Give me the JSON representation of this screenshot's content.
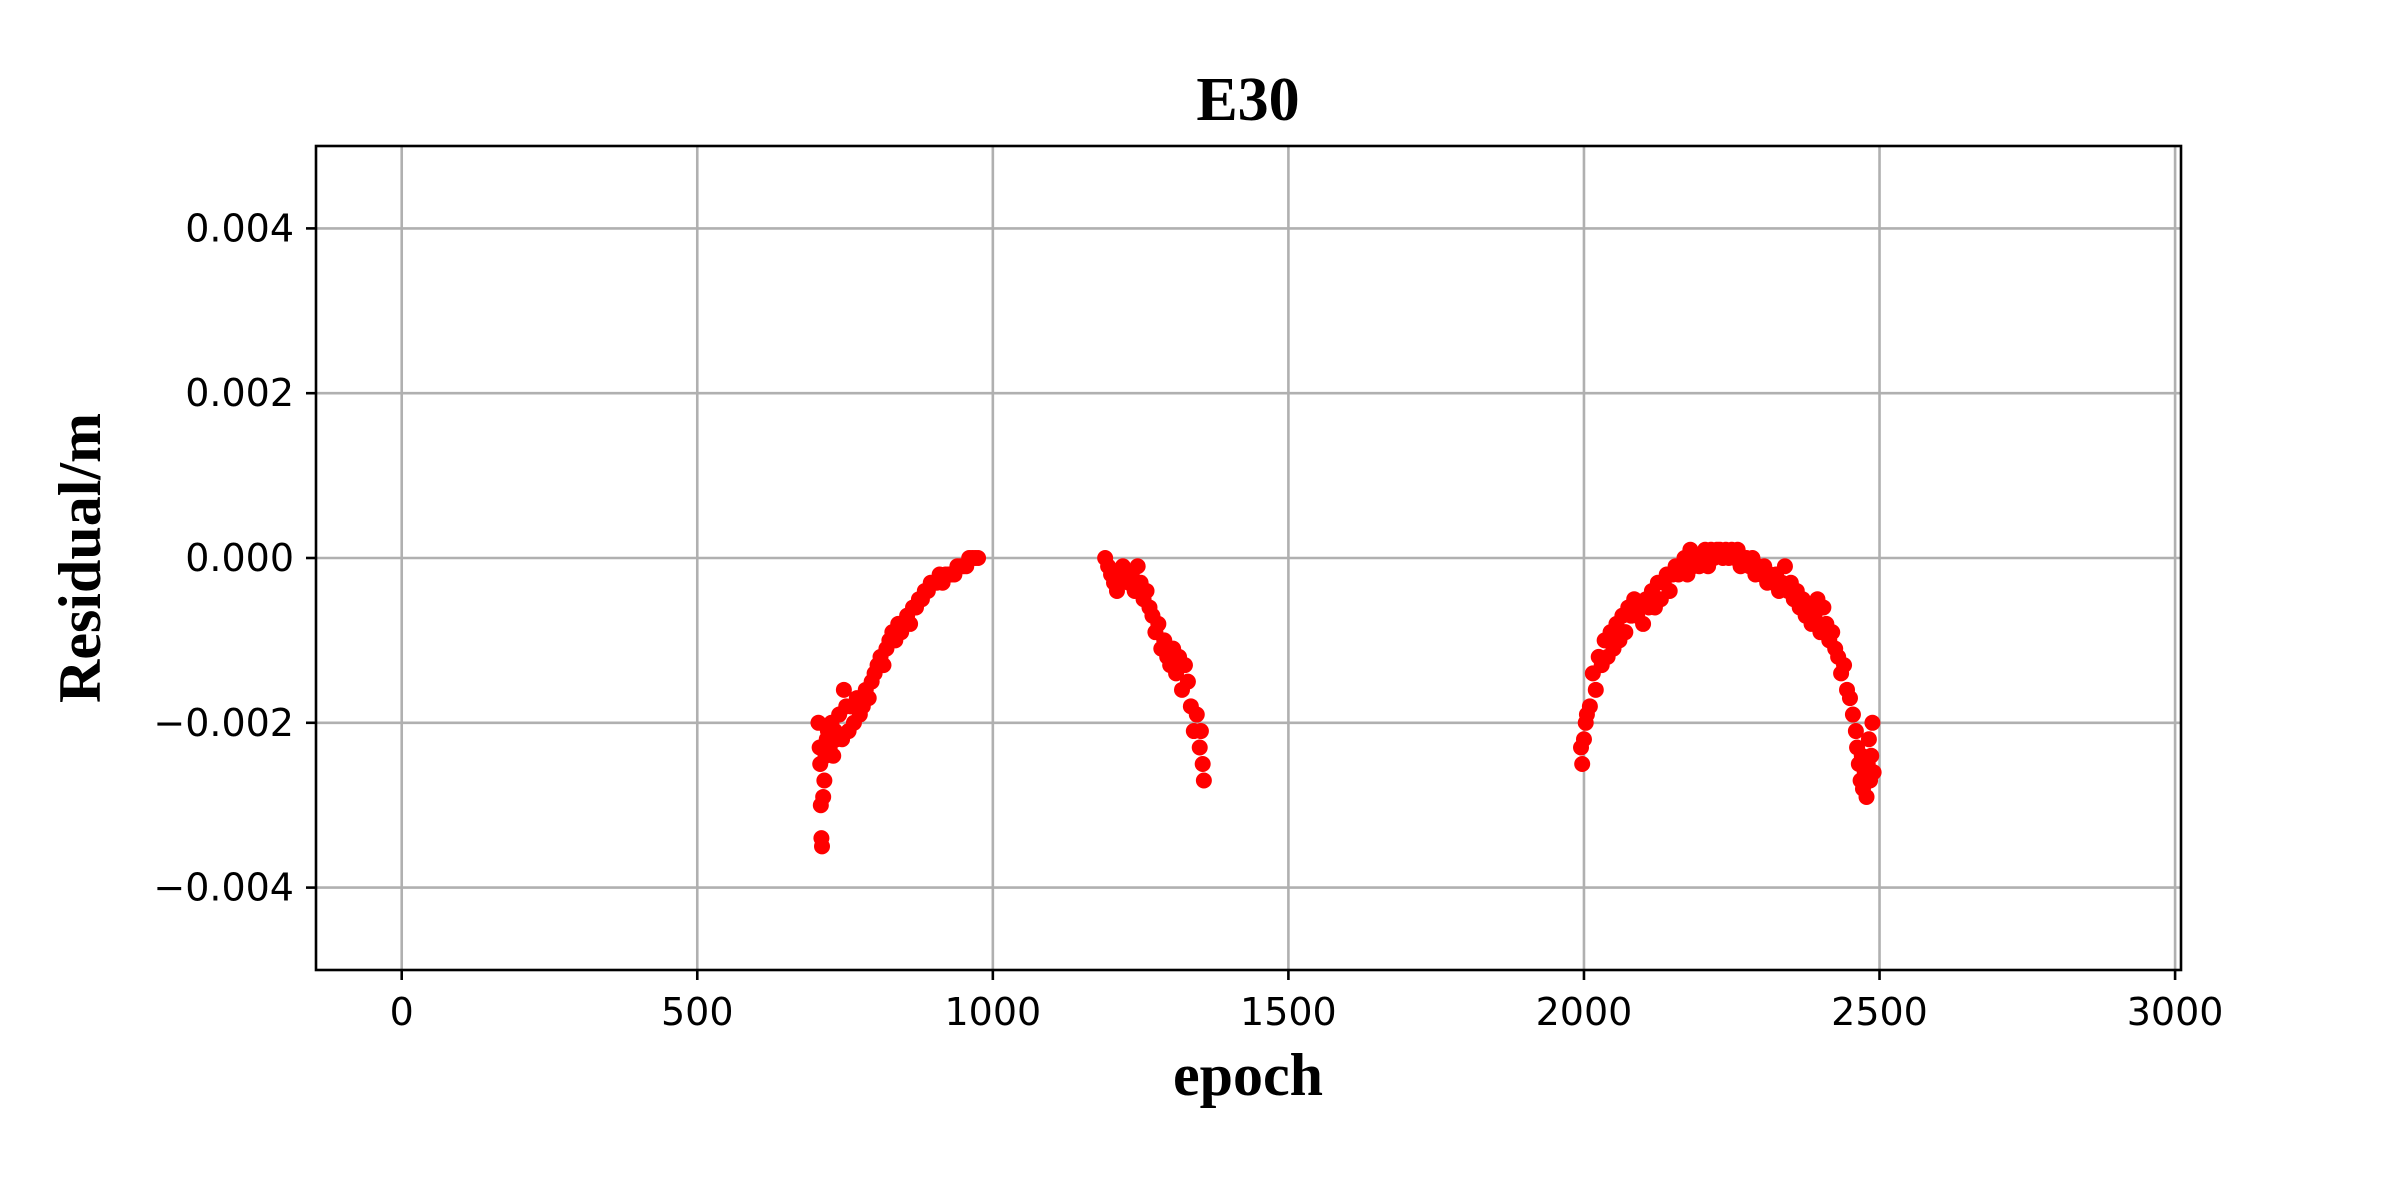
{
  "chart_data": {
    "type": "scatter",
    "title": "E30",
    "xlabel": "epoch",
    "ylabel": "Residual/m",
    "xlim": [
      -145,
      3010
    ],
    "ylim": [
      -0.005,
      0.005
    ],
    "xticks": [
      0,
      500,
      1000,
      1500,
      2000,
      2500,
      3000
    ],
    "xtick_labels": [
      "0",
      "500",
      "1000",
      "1500",
      "2000",
      "2500",
      "3000"
    ],
    "yticks": [
      0.004,
      0.002,
      0.0,
      -0.002,
      -0.004
    ],
    "ytick_labels": [
      "0.004",
      "0.002",
      "0.000",
      "−0.002",
      "−0.004"
    ],
    "grid": true,
    "marker_color": "#ff0000",
    "series": [
      {
        "points": [
          [
            705,
            -0.002
          ],
          [
            707,
            -0.0023
          ],
          [
            708,
            -0.0025
          ],
          [
            709,
            -0.003
          ],
          [
            710,
            -0.0034
          ],
          [
            711,
            -0.0035
          ],
          [
            713,
            -0.0029
          ],
          [
            715,
            -0.0027
          ],
          [
            717,
            -0.0024
          ],
          [
            719,
            -0.0022
          ],
          [
            721,
            -0.0021
          ],
          [
            724,
            -0.0023
          ],
          [
            727,
            -0.002
          ],
          [
            730,
            -0.0024
          ],
          [
            733,
            -0.0021
          ],
          [
            736,
            -0.0022
          ],
          [
            740,
            -0.0019
          ],
          [
            745,
            -0.0022
          ],
          [
            748,
            -0.0016
          ],
          [
            752,
            -0.0018
          ],
          [
            756,
            -0.0021
          ],
          [
            760,
            -0.0018
          ],
          [
            765,
            -0.002
          ],
          [
            770,
            -0.0017
          ],
          [
            775,
            -0.0019
          ],
          [
            780,
            -0.0018
          ],
          [
            785,
            -0.0016
          ],
          [
            790,
            -0.0017
          ],
          [
            795,
            -0.0015
          ],
          [
            800,
            -0.0014
          ],
          [
            805,
            -0.0013
          ],
          [
            810,
            -0.0012
          ],
          [
            815,
            -0.0013
          ],
          [
            820,
            -0.0011
          ],
          [
            825,
            -0.001
          ],
          [
            830,
            -0.0009
          ],
          [
            835,
            -0.001
          ],
          [
            840,
            -0.0008
          ],
          [
            845,
            -0.0009
          ],
          [
            850,
            -0.0008
          ],
          [
            855,
            -0.0007
          ],
          [
            860,
            -0.0008
          ],
          [
            865,
            -0.0006
          ],
          [
            870,
            -0.0006
          ],
          [
            875,
            -0.0005
          ],
          [
            880,
            -0.0005
          ],
          [
            885,
            -0.0004
          ],
          [
            890,
            -0.0004
          ],
          [
            895,
            -0.0003
          ],
          [
            900,
            -0.0003
          ],
          [
            905,
            -0.0003
          ],
          [
            910,
            -0.0002
          ],
          [
            915,
            -0.0003
          ],
          [
            920,
            -0.0002
          ],
          [
            925,
            -0.0002
          ],
          [
            930,
            -0.0002
          ],
          [
            935,
            -0.0002
          ],
          [
            940,
            -0.0001
          ],
          [
            945,
            -0.0001
          ],
          [
            950,
            -0.0001
          ],
          [
            955,
            -0.0001
          ],
          [
            960,
            0.0
          ],
          [
            965,
            0.0
          ],
          [
            970,
            0.0
          ],
          [
            975,
            0.0
          ],
          [
            1190,
            0.0
          ],
          [
            1195,
            -0.0001
          ],
          [
            1200,
            -0.0002
          ],
          [
            1205,
            -0.0003
          ],
          [
            1210,
            -0.0004
          ],
          [
            1215,
            -0.0003
          ],
          [
            1220,
            -0.0001
          ],
          [
            1225,
            -0.0002
          ],
          [
            1230,
            -0.0003
          ],
          [
            1235,
            -0.0002
          ],
          [
            1240,
            -0.0004
          ],
          [
            1245,
            -0.0001
          ],
          [
            1250,
            -0.0003
          ],
          [
            1255,
            -0.0005
          ],
          [
            1260,
            -0.0004
          ],
          [
            1265,
            -0.0006
          ],
          [
            1270,
            -0.0007
          ],
          [
            1275,
            -0.0009
          ],
          [
            1280,
            -0.0008
          ],
          [
            1285,
            -0.0011
          ],
          [
            1290,
            -0.001
          ],
          [
            1295,
            -0.0012
          ],
          [
            1300,
            -0.0013
          ],
          [
            1305,
            -0.0011
          ],
          [
            1310,
            -0.0014
          ],
          [
            1315,
            -0.0012
          ],
          [
            1320,
            -0.0016
          ],
          [
            1325,
            -0.0013
          ],
          [
            1330,
            -0.0015
          ],
          [
            1335,
            -0.0018
          ],
          [
            1340,
            -0.0021
          ],
          [
            1345,
            -0.0019
          ],
          [
            1350,
            -0.0023
          ],
          [
            1352,
            -0.0021
          ],
          [
            1355,
            -0.0025
          ],
          [
            1357,
            -0.0027
          ],
          [
            1995,
            -0.0023
          ],
          [
            1997,
            -0.0025
          ],
          [
            2000,
            -0.0022
          ],
          [
            2003,
            -0.002
          ],
          [
            2005,
            -0.0019
          ],
          [
            2010,
            -0.0018
          ],
          [
            2015,
            -0.0014
          ],
          [
            2020,
            -0.0016
          ],
          [
            2025,
            -0.0012
          ],
          [
            2030,
            -0.0013
          ],
          [
            2035,
            -0.001
          ],
          [
            2040,
            -0.0012
          ],
          [
            2045,
            -0.0009
          ],
          [
            2050,
            -0.0011
          ],
          [
            2055,
            -0.0008
          ],
          [
            2060,
            -0.001
          ],
          [
            2065,
            -0.0007
          ],
          [
            2070,
            -0.0009
          ],
          [
            2075,
            -0.0006
          ],
          [
            2080,
            -0.0007
          ],
          [
            2085,
            -0.0005
          ],
          [
            2090,
            -0.0007
          ],
          [
            2095,
            -0.0006
          ],
          [
            2100,
            -0.0008
          ],
          [
            2105,
            -0.0005
          ],
          [
            2110,
            -0.0006
          ],
          [
            2115,
            -0.0004
          ],
          [
            2120,
            -0.0006
          ],
          [
            2125,
            -0.0003
          ],
          [
            2130,
            -0.0005
          ],
          [
            2135,
            -0.0003
          ],
          [
            2140,
            -0.0002
          ],
          [
            2145,
            -0.0004
          ],
          [
            2150,
            -0.0002
          ],
          [
            2155,
            -0.0001
          ],
          [
            2160,
            -0.0002
          ],
          [
            2165,
            -0.0001
          ],
          [
            2170,
            0.0
          ],
          [
            2175,
            -0.0002
          ],
          [
            2180,
            0.0001
          ],
          [
            2185,
            -0.0001
          ],
          [
            2190,
            0.0
          ],
          [
            2195,
            -0.0001
          ],
          [
            2200,
            0.0
          ],
          [
            2205,
            0.0001
          ],
          [
            2210,
            -0.0001
          ],
          [
            2215,
            0.0001
          ],
          [
            2220,
            0.0
          ],
          [
            2225,
            0.0001
          ],
          [
            2230,
            0.0001
          ],
          [
            2235,
            0.0
          ],
          [
            2240,
            0.0001
          ],
          [
            2245,
            0.0
          ],
          [
            2250,
            0.0001
          ],
          [
            2255,
            0.0
          ],
          [
            2260,
            0.0001
          ],
          [
            2265,
            -0.0001
          ],
          [
            2270,
            0.0
          ],
          [
            2275,
            0.0
          ],
          [
            2280,
            -0.0001
          ],
          [
            2285,
            0.0
          ],
          [
            2290,
            -0.0002
          ],
          [
            2295,
            -0.0001
          ],
          [
            2300,
            -0.0002
          ],
          [
            2305,
            -0.0001
          ],
          [
            2310,
            -0.0003
          ],
          [
            2315,
            -0.0002
          ],
          [
            2320,
            -0.0003
          ],
          [
            2325,
            -0.0002
          ],
          [
            2330,
            -0.0004
          ],
          [
            2335,
            -0.0003
          ],
          [
            2340,
            -0.0001
          ],
          [
            2345,
            -0.0004
          ],
          [
            2350,
            -0.0003
          ],
          [
            2355,
            -0.0005
          ],
          [
            2360,
            -0.0004
          ],
          [
            2365,
            -0.0006
          ],
          [
            2370,
            -0.0005
          ],
          [
            2375,
            -0.0007
          ],
          [
            2380,
            -0.0006
          ],
          [
            2385,
            -0.0008
          ],
          [
            2390,
            -0.0007
          ],
          [
            2395,
            -0.0005
          ],
          [
            2400,
            -0.0009
          ],
          [
            2405,
            -0.0006
          ],
          [
            2410,
            -0.0008
          ],
          [
            2415,
            -0.001
          ],
          [
            2420,
            -0.0009
          ],
          [
            2425,
            -0.0011
          ],
          [
            2430,
            -0.0012
          ],
          [
            2435,
            -0.0014
          ],
          [
            2440,
            -0.0013
          ],
          [
            2445,
            -0.0016
          ],
          [
            2450,
            -0.0017
          ],
          [
            2455,
            -0.0019
          ],
          [
            2460,
            -0.0021
          ],
          [
            2462,
            -0.0023
          ],
          [
            2465,
            -0.0025
          ],
          [
            2468,
            -0.0027
          ],
          [
            2470,
            -0.0024
          ],
          [
            2472,
            -0.0028
          ],
          [
            2475,
            -0.0026
          ],
          [
            2478,
            -0.0029
          ],
          [
            2480,
            -0.0025
          ],
          [
            2482,
            -0.0022
          ],
          [
            2484,
            -0.0027
          ],
          [
            2486,
            -0.0024
          ],
          [
            2488,
            -0.002
          ],
          [
            2490,
            -0.0026
          ]
        ]
      }
    ]
  }
}
